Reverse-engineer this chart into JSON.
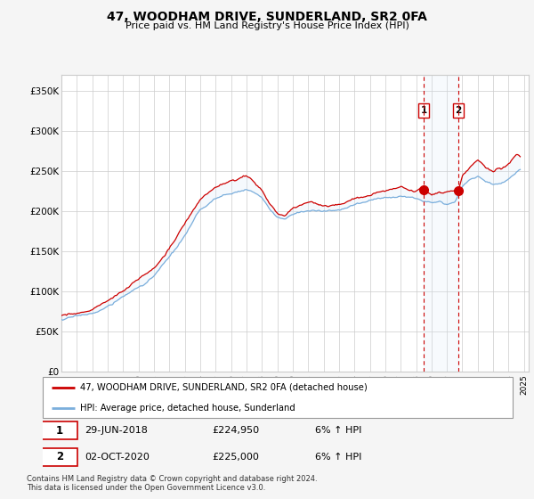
{
  "title": "47, WOODHAM DRIVE, SUNDERLAND, SR2 0FA",
  "subtitle": "Price paid vs. HM Land Registry's House Price Index (HPI)",
  "ylabel_ticks": [
    "£0",
    "£50K",
    "£100K",
    "£150K",
    "£200K",
    "£250K",
    "£300K",
    "£350K"
  ],
  "ylim": [
    0,
    370000
  ],
  "xlim_start": 1995.0,
  "xlim_end": 2025.3,
  "legend_line1": "47, WOODHAM DRIVE, SUNDERLAND, SR2 0FA (detached house)",
  "legend_line2": "HPI: Average price, detached house, Sunderland",
  "event1_label": "1",
  "event1_date": "29-JUN-2018",
  "event1_price": "£224,950",
  "event1_hpi": "6% ↑ HPI",
  "event2_label": "2",
  "event2_date": "02-OCT-2020",
  "event2_price": "£225,000",
  "event2_hpi": "6% ↑ HPI",
  "footnote1": "Contains HM Land Registry data © Crown copyright and database right 2024.",
  "footnote2": "This data is licensed under the Open Government Licence v3.0.",
  "red_color": "#cc0000",
  "blue_color": "#7aaedc",
  "shade_color": "#d8eaf8",
  "event_vline_color": "#cc0000",
  "grid_color": "#cccccc",
  "bg_color": "#f5f5f5",
  "event1_x": 2018.495,
  "event2_x": 2020.747
}
